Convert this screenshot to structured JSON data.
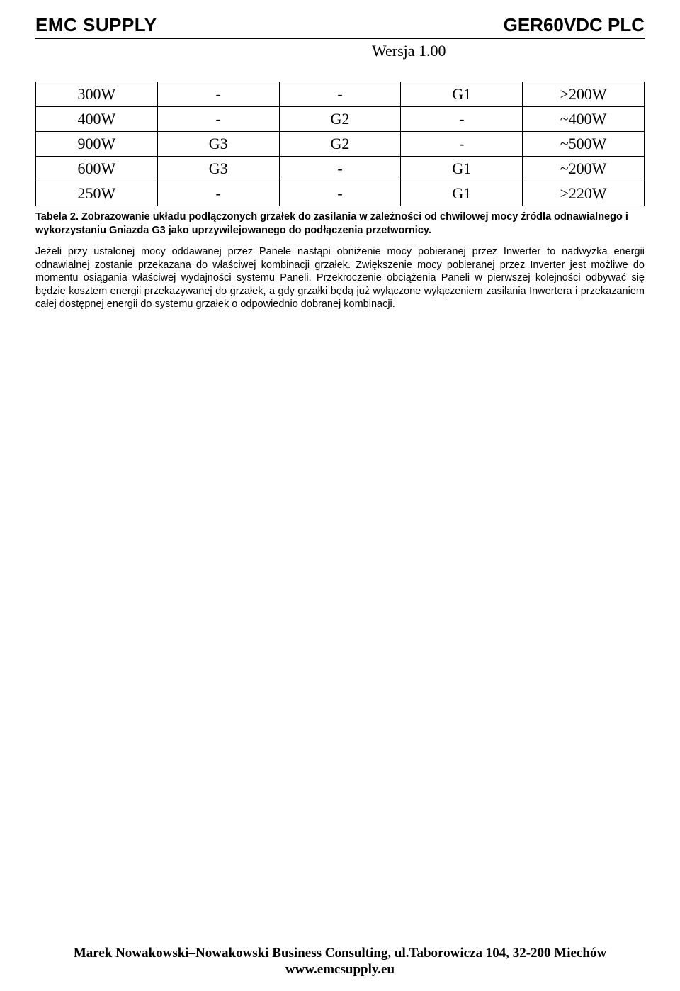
{
  "header": {
    "left": "EMC SUPPLY",
    "right": "GER60VDC PLC",
    "version": "Wersja 1.00"
  },
  "table": {
    "rows": [
      [
        "300W",
        "-",
        "-",
        "G1",
        ">200W"
      ],
      [
        "400W",
        "-",
        "G2",
        "-",
        "~400W"
      ],
      [
        "900W",
        "G3",
        "G2",
        "-",
        "~500W"
      ],
      [
        "600W",
        "G3",
        "-",
        "G1",
        "~200W"
      ],
      [
        "250W",
        "-",
        "-",
        "G1",
        ">220W"
      ]
    ]
  },
  "caption": "Tabela 2. Zobrazowanie układu podłączonych grzałek do zasilania w zależności od chwilowej mocy źródła odnawialnego i wykorzystaniu Gniazda G3 jako uprzywilejowanego do podłączenia przetwornicy.",
  "paragraph": "Jeżeli przy ustalonej mocy oddawanej przez Panele nastąpi obniżenie mocy pobieranej przez Inwerter to nadwyżka energii odnawialnej zostanie przekazana do właściwej kombinacji grzałek. Zwiększenie mocy pobieranej przez Inverter jest możliwe do momentu osiągania właściwej wydajności systemu Paneli. Przekroczenie obciążenia Paneli w pierwszej kolejności odbywać się będzie kosztem energii przekazywanej do grzałek, a gdy grzałki będą już wyłączone wyłączeniem zasilania Inwertera i przekazaniem całej dostępnej energii do systemu grzałek o odpowiednio dobranej kombinacji.",
  "footer": {
    "line1": "Marek Nowakowski–Nowakowski Business Consulting, ul.Taborowicza 104, 32-200 Miechów",
    "line2": "www.emcsupply.eu"
  },
  "colors": {
    "text": "#000000",
    "background": "#ffffff",
    "border": "#000000"
  }
}
